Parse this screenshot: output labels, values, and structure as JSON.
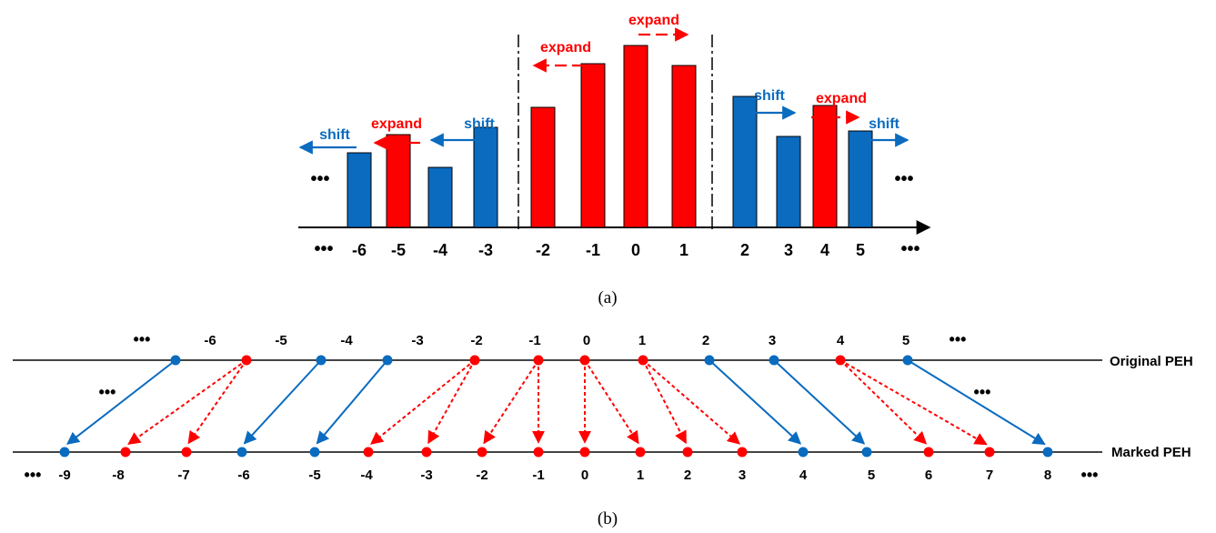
{
  "colors": {
    "blue": "#0a6bbf",
    "red": "#ff0000",
    "black": "#000000",
    "axis": "#3a3a3a"
  },
  "panel_a": {
    "caption": "(a)",
    "bars": [
      {
        "bin": "-6",
        "color": "blue",
        "height": 0.41
      },
      {
        "bin": "-5",
        "color": "red",
        "height": 0.51
      },
      {
        "bin": "-4",
        "color": "blue",
        "height": 0.33
      },
      {
        "bin": "-3",
        "color": "blue",
        "height": 0.55
      },
      {
        "bin": "-2",
        "color": "red",
        "height": 0.66
      },
      {
        "bin": "-1",
        "color": "red",
        "height": 0.9
      },
      {
        "bin": "0",
        "color": "red",
        "height": 1.0
      },
      {
        "bin": "1",
        "color": "red",
        "height": 0.89
      },
      {
        "bin": "2",
        "color": "blue",
        "height": 0.72
      },
      {
        "bin": "3",
        "color": "blue",
        "height": 0.5
      },
      {
        "bin": "4",
        "color": "red",
        "height": 0.67
      },
      {
        "bin": "5",
        "color": "blue",
        "height": 0.53
      }
    ],
    "ellipsis": "•••",
    "annotations": [
      {
        "text": "shift",
        "color": "blue",
        "style": "solid",
        "direction": "left"
      },
      {
        "text": "expand",
        "color": "red",
        "style": "dashed",
        "direction": "left"
      },
      {
        "text": "shift",
        "color": "blue",
        "style": "solid",
        "direction": "left"
      },
      {
        "text": "expand",
        "color": "red",
        "style": "dashed",
        "direction": "left"
      },
      {
        "text": "expand",
        "color": "red",
        "style": "dashed",
        "direction": "right"
      },
      {
        "text": "shift",
        "color": "blue",
        "style": "solid",
        "direction": "right"
      },
      {
        "text": "expand",
        "color": "red",
        "style": "dashed",
        "direction": "right"
      },
      {
        "text": "shift",
        "color": "blue",
        "style": "solid",
        "direction": "right"
      }
    ]
  },
  "panel_b": {
    "caption": "(b)",
    "original_label": "Original PEH",
    "marked_label": "Marked PEH",
    "ellipsis": "•••",
    "original_points": [
      {
        "label": "-6",
        "color": "blue"
      },
      {
        "label": "-5",
        "color": "red"
      },
      {
        "label": "-4",
        "color": "blue"
      },
      {
        "label": "-3",
        "color": "blue"
      },
      {
        "label": "-2",
        "color": "red"
      },
      {
        "label": "-1",
        "color": "red"
      },
      {
        "label": "0",
        "color": "red"
      },
      {
        "label": "1",
        "color": "red"
      },
      {
        "label": "2",
        "color": "blue"
      },
      {
        "label": "3",
        "color": "blue"
      },
      {
        "label": "4",
        "color": "red"
      },
      {
        "label": "5",
        "color": "blue"
      }
    ],
    "marked_points": [
      {
        "label": "-9",
        "color": "blue"
      },
      {
        "label": "-8",
        "color": "red"
      },
      {
        "label": "-7",
        "color": "red"
      },
      {
        "label": "-6",
        "color": "blue"
      },
      {
        "label": "-5",
        "color": "blue"
      },
      {
        "label": "-4",
        "color": "red"
      },
      {
        "label": "-3",
        "color": "red"
      },
      {
        "label": "-2",
        "color": "red"
      },
      {
        "label": "-1",
        "color": "red"
      },
      {
        "label": "0",
        "color": "red"
      },
      {
        "label": "1",
        "color": "red"
      },
      {
        "label": "2",
        "color": "red"
      },
      {
        "label": "3",
        "color": "red"
      },
      {
        "label": "4",
        "color": "blue"
      },
      {
        "label": "5",
        "color": "blue"
      },
      {
        "label": "6",
        "color": "red"
      },
      {
        "label": "7",
        "color": "red"
      },
      {
        "label": "8",
        "color": "blue"
      }
    ],
    "mappings": [
      {
        "from": "-6",
        "to": [
          "-9"
        ],
        "kind": "shift"
      },
      {
        "from": "-5",
        "to": [
          "-8",
          "-7"
        ],
        "kind": "expand"
      },
      {
        "from": "-4",
        "to": [
          "-6"
        ],
        "kind": "shift"
      },
      {
        "from": "-3",
        "to": [
          "-5"
        ],
        "kind": "shift"
      },
      {
        "from": "-2",
        "to": [
          "-4",
          "-3"
        ],
        "kind": "expand"
      },
      {
        "from": "-1",
        "to": [
          "-2",
          "-1"
        ],
        "kind": "expand"
      },
      {
        "from": "0",
        "to": [
          "0",
          "1"
        ],
        "kind": "expand"
      },
      {
        "from": "1",
        "to": [
          "2",
          "3"
        ],
        "kind": "expand"
      },
      {
        "from": "2",
        "to": [
          "4"
        ],
        "kind": "shift"
      },
      {
        "from": "3",
        "to": [
          "5"
        ],
        "kind": "shift"
      },
      {
        "from": "4",
        "to": [
          "6",
          "7"
        ],
        "kind": "expand"
      },
      {
        "from": "5",
        "to": [
          "8"
        ],
        "kind": "shift"
      }
    ]
  }
}
